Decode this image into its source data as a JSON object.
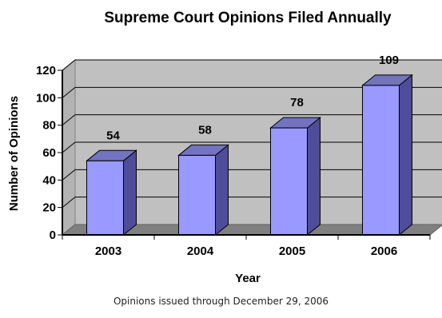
{
  "chart_data": {
    "type": "bar",
    "title": "Supreme Court Opinions Filed Annually",
    "xlabel": "Year",
    "ylabel": "Number of Opinions",
    "categories": [
      "2003",
      "2004",
      "2005",
      "2006"
    ],
    "values": [
      54,
      58,
      78,
      109
    ],
    "ylim": [
      0,
      120
    ],
    "yticks": [
      0,
      20,
      40,
      60,
      80,
      100,
      120
    ],
    "grid": true,
    "legend": "none",
    "bar_color": "#9999ff",
    "plot_background": "#c0c0c0"
  },
  "footer": {
    "caption": "Opinions issued through December 29, 2006"
  }
}
